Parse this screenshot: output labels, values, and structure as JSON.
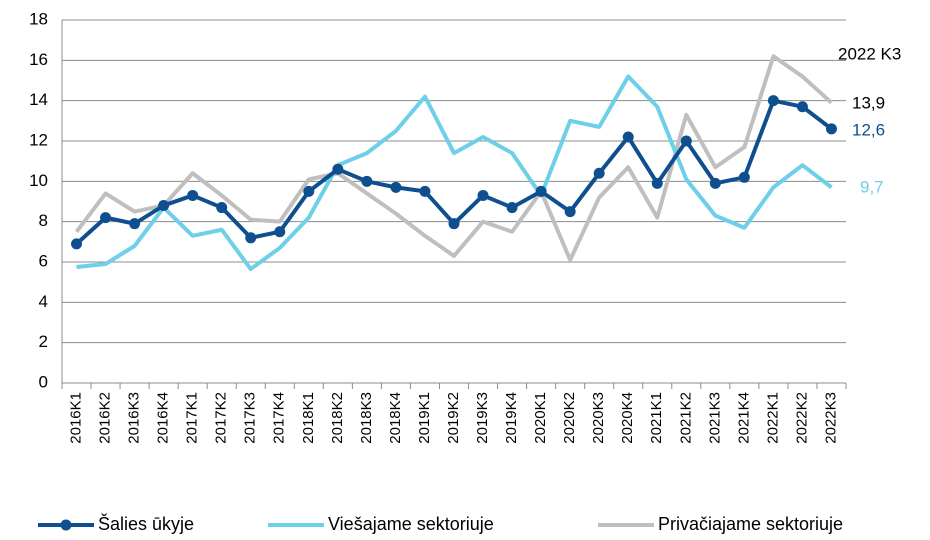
{
  "chart_data": {
    "type": "line",
    "categories": [
      "2016K1",
      "2016K2",
      "2016K3",
      "2016K4",
      "2017K1",
      "2017K2",
      "2017K3",
      "2017K4",
      "2018K1",
      "2018K2",
      "2018K3",
      "2018K4",
      "2019K1",
      "2019K2",
      "2019K3",
      "2019K4",
      "2020K1",
      "2020K2",
      "2020K3",
      "2020K4",
      "2021K1",
      "2021K2",
      "2021K3",
      "2021K4",
      "2022K1",
      "2022K2",
      "2022K3"
    ],
    "series": [
      {
        "name": "Šalies ūkyje",
        "color": "#0f4f8f",
        "marker": true,
        "values": [
          6.9,
          8.2,
          7.9,
          8.8,
          9.3,
          8.7,
          7.2,
          7.5,
          9.5,
          10.6,
          10.0,
          9.7,
          9.5,
          7.9,
          9.3,
          8.7,
          9.5,
          8.5,
          10.4,
          12.2,
          9.9,
          12.0,
          9.9,
          10.2,
          14.0,
          13.7,
          12.6
        ],
        "value_labels": [
          null,
          null,
          null,
          null,
          null,
          null,
          null,
          null,
          null,
          null,
          null,
          null,
          null,
          null,
          null,
          null,
          null,
          null,
          null,
          null,
          null,
          null,
          null,
          null,
          null,
          null,
          "12,6"
        ]
      },
      {
        "name": "Viešajame sektoriuje",
        "color": "#6dcfe8",
        "marker": false,
        "values": [
          5.75,
          5.9,
          6.8,
          8.7,
          7.3,
          7.6,
          5.65,
          6.7,
          8.2,
          10.8,
          11.4,
          12.5,
          14.2,
          11.4,
          12.2,
          11.4,
          9.3,
          13.0,
          12.7,
          15.2,
          13.7,
          10.1,
          8.3,
          7.7,
          9.7,
          10.8,
          9.7
        ],
        "value_labels": [
          null,
          null,
          null,
          null,
          null,
          null,
          null,
          null,
          null,
          null,
          null,
          null,
          null,
          null,
          null,
          null,
          null,
          null,
          null,
          null,
          null,
          null,
          null,
          null,
          null,
          null,
          "9,7"
        ]
      },
      {
        "name": "Privačiajame sektoriuje",
        "color": "#bfbfbf",
        "marker": false,
        "values": [
          7.5,
          9.4,
          8.5,
          8.8,
          10.4,
          9.3,
          8.1,
          8.0,
          10.1,
          10.4,
          9.4,
          8.4,
          7.3,
          6.3,
          8.0,
          7.5,
          9.5,
          6.1,
          9.2,
          10.7,
          8.2,
          13.3,
          10.7,
          11.7,
          16.2,
          15.2,
          13.9
        ],
        "value_labels": [
          null,
          null,
          null,
          null,
          null,
          null,
          null,
          null,
          null,
          null,
          null,
          null,
          null,
          null,
          null,
          null,
          null,
          null,
          null,
          null,
          null,
          null,
          null,
          null,
          null,
          null,
          "13,9"
        ]
      }
    ],
    "annotation": "2022 K3",
    "ylim": [
      0,
      18
    ],
    "yticks": [
      0,
      2,
      4,
      6,
      8,
      10,
      12,
      14,
      16,
      18
    ],
    "grid": true,
    "legend": "bottom"
  }
}
